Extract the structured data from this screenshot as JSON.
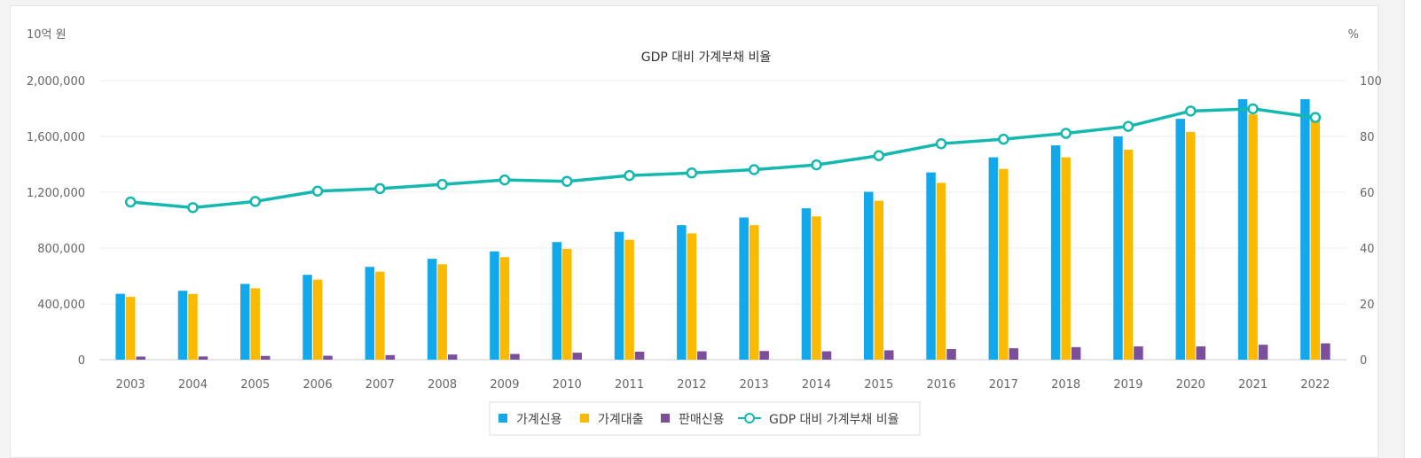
{
  "chart_data": {
    "type": "bar",
    "title": "GDP 대비 가계부채 비율",
    "left_unit": "10억 원",
    "right_unit": "%",
    "categories": [
      "2003",
      "2004",
      "2005",
      "2006",
      "2007",
      "2008",
      "2009",
      "2010",
      "2011",
      "2012",
      "2013",
      "2014",
      "2015",
      "2016",
      "2017",
      "2018",
      "2019",
      "2020",
      "2021",
      "2022"
    ],
    "y_left": {
      "ticks": [
        "0",
        "400,000",
        "800,000",
        "1,200,000",
        "1,600,000",
        "2,000,000"
      ],
      "lim": [
        0,
        2000000
      ]
    },
    "y_right": {
      "ticks": [
        "0",
        "20",
        "40",
        "60",
        "80",
        "100"
      ],
      "lim": [
        0,
        100
      ]
    },
    "series": [
      {
        "name": "가계신용",
        "kind": "bar",
        "color": "#12a8ec",
        "values": [
          472000,
          494000,
          543000,
          608000,
          665000,
          723000,
          776000,
          843000,
          916000,
          964000,
          1019000,
          1085000,
          1203000,
          1342000,
          1450000,
          1536000,
          1600000,
          1726000,
          1867000,
          1867000
        ]
      },
      {
        "name": "가계대출",
        "kind": "bar",
        "color": "#fbb900",
        "values": [
          450000,
          471000,
          512000,
          574000,
          631000,
          684000,
          735000,
          794000,
          859000,
          905000,
          964000,
          1027000,
          1139000,
          1267000,
          1367000,
          1450000,
          1505000,
          1632000,
          1758000,
          1749000
        ]
      },
      {
        "name": "판매신용",
        "kind": "bar",
        "color": "#7b4f9b",
        "values": [
          22000,
          23000,
          27000,
          28000,
          33000,
          37000,
          41000,
          50000,
          57000,
          60000,
          62000,
          60000,
          67000,
          76000,
          82000,
          90000,
          95000,
          95000,
          107000,
          117000
        ]
      },
      {
        "name": "GDP 대비 가계부채 비율",
        "kind": "line",
        "color": "#14b8ae",
        "values": [
          56.5,
          54.5,
          56.7,
          60.4,
          61.3,
          62.8,
          64.4,
          63.9,
          66.0,
          66.9,
          68.1,
          69.8,
          73.1,
          77.4,
          79.0,
          81.1,
          83.6,
          89.1,
          89.9,
          86.8
        ]
      }
    ],
    "grid": true,
    "legend_position": "bottom-center"
  }
}
